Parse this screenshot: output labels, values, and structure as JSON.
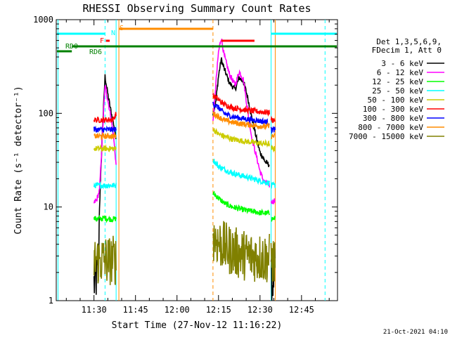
{
  "chart_data": {
    "type": "line",
    "title": "RHESSI Observing Summary Count Rates",
    "xlabel": "Start Time (27-Nov-12 11:16:22)",
    "ylabel": "Count Rate (s⁻¹ detector⁻¹)",
    "y_scale": "log",
    "ylim": [
      1,
      1000
    ],
    "xlim": [
      "11:16:22",
      "12:58:00"
    ],
    "x_ticks": [
      "11:30",
      "11:45",
      "12:00",
      "12:15",
      "12:30",
      "12:45"
    ],
    "y_ticks": [
      "1",
      "10",
      "100",
      "1000"
    ],
    "footer": "21-Oct-2021 04:10",
    "legend": {
      "placement": "right",
      "header": [
        "Det 1,3,5,6,9,",
        "FDecim 1, Att 0"
      ]
    },
    "flag_labels": {
      "flare": "F",
      "nflag": "N",
      "saa": "S",
      "rd0": "RD0",
      "rd6": "RD6"
    },
    "series": [
      {
        "name": "3 - 6 keV",
        "color": "#000000",
        "segments": [
          {
            "t": [
              "11:30:00",
              "11:31:30",
              "11:32:00",
              "11:33:00",
              "11:34:00",
              "11:35:00",
              "11:36:00",
              "11:37:00",
              "11:38:00"
            ],
            "y": [
              1.5,
              2,
              10,
              60,
              250,
              160,
              110,
              80,
              55
            ]
          },
          {
            "t": [
              "12:13:00",
              "12:14:00",
              "12:15:00",
              "12:16:00",
              "12:17:00",
              "12:19:00",
              "12:21:00",
              "12:22:30",
              "12:24:00",
              "12:25:30",
              "12:27:00",
              "12:29:00",
              "12:30:00",
              "12:31:00",
              "12:32:00",
              "12:33:30"
            ],
            "y": [
              100,
              130,
              250,
              380,
              300,
              210,
              180,
              240,
              220,
              150,
              90,
              50,
              38,
              34,
              30,
              28
            ]
          },
          {
            "t": [
              "12:34:00",
              "12:35:30"
            ],
            "y": [
              1.5,
              2
            ]
          }
        ]
      },
      {
        "name": "6 - 12 keV",
        "color": "#ff00ff",
        "segments": [
          {
            "t": [
              "11:30:00",
              "11:31:00",
              "11:32:00",
              "11:33:00",
              "11:34:00",
              "11:35:00",
              "11:36:00",
              "11:37:00",
              "11:38:00"
            ],
            "y": [
              11,
              12,
              15,
              55,
              200,
              140,
              95,
              60,
              28
            ]
          },
          {
            "t": [
              "12:13:00",
              "12:14:00",
              "12:15:00",
              "12:16:00",
              "12:17:00",
              "12:19:00",
              "12:21:00",
              "12:22:30",
              "12:24:00",
              "12:25:30",
              "12:27:00",
              "12:29:00",
              "12:30:00",
              "12:31:00",
              "12:32:00",
              "12:33:30"
            ],
            "y": [
              80,
              200,
              450,
              650,
              420,
              260,
              200,
              280,
              230,
              110,
              55,
              32,
              24,
              20,
              18,
              17
            ]
          },
          {
            "t": [
              "12:34:00",
              "12:35:30"
            ],
            "y": [
              11,
              12
            ]
          }
        ]
      },
      {
        "name": "12 - 25 keV",
        "color": "#00ff00",
        "segments": [
          {
            "t": [
              "11:30:00",
              "11:32:00",
              "11:34:00",
              "11:36:00",
              "11:38:00"
            ],
            "y": [
              7.5,
              7.5,
              7.6,
              7.4,
              7.5
            ]
          },
          {
            "t": [
              "12:13:00",
              "12:15:00",
              "12:17:00",
              "12:20:00",
              "12:25:00",
              "12:30:00",
              "12:33:30"
            ],
            "y": [
              14,
              12.5,
              11,
              10,
              9.2,
              8.7,
              8.5
            ]
          },
          {
            "t": [
              "12:34:00",
              "12:35:30"
            ],
            "y": [
              7.5,
              7.5
            ]
          }
        ]
      },
      {
        "name": "25 - 50 keV",
        "color": "#00ffff",
        "segments": [
          {
            "t": [
              "11:30:00",
              "11:34:00",
              "11:38:00"
            ],
            "y": [
              17,
              17,
              17
            ]
          },
          {
            "t": [
              "12:13:00",
              "12:15:00",
              "12:20:00",
              "12:25:00",
              "12:30:00",
              "12:33:30"
            ],
            "y": [
              32,
              27,
              23,
              21,
              19,
              18
            ]
          },
          {
            "t": [
              "12:34:00",
              "12:35:30"
            ],
            "y": [
              17,
              17
            ]
          }
        ]
      },
      {
        "name": "50 - 100 keV",
        "color": "#cccc00",
        "segments": [
          {
            "t": [
              "11:30:00",
              "11:34:00",
              "11:38:00"
            ],
            "y": [
              42,
              42,
              42
            ]
          },
          {
            "t": [
              "12:13:00",
              "12:15:00",
              "12:20:00",
              "12:25:00",
              "12:30:00",
              "12:33:30"
            ],
            "y": [
              68,
              60,
              53,
              50,
              48,
              47
            ]
          },
          {
            "t": [
              "12:34:00",
              "12:35:30"
            ],
            "y": [
              42,
              42
            ]
          }
        ]
      },
      {
        "name": "100 - 300 keV",
        "color": "#ff0000",
        "segments": [
          {
            "t": [
              "11:30:00",
              "11:34:00",
              "11:37:00",
              "11:38:00"
            ],
            "y": [
              85,
              85,
              86,
              100
            ]
          },
          {
            "t": [
              "12:13:00",
              "12:15:00",
              "12:17:00",
              "12:20:00",
              "12:25:00",
              "12:30:00",
              "12:33:30"
            ],
            "y": [
              155,
              140,
              125,
              115,
              108,
              104,
              102
            ]
          },
          {
            "t": [
              "12:34:00",
              "12:35:30"
            ],
            "y": [
              85,
              85
            ]
          }
        ]
      },
      {
        "name": "300 - 800 keV",
        "color": "#0000ff",
        "segments": [
          {
            "t": [
              "11:30:00",
              "11:34:00",
              "11:38:00"
            ],
            "y": [
              67,
              67,
              67
            ]
          },
          {
            "t": [
              "12:13:00",
              "12:15:00",
              "12:17:00",
              "12:20:00",
              "12:25:00",
              "12:30:00",
              "12:33:30"
            ],
            "y": [
              128,
              115,
              100,
              92,
              87,
              83,
              80
            ]
          },
          {
            "t": [
              "12:34:00",
              "12:35:30"
            ],
            "y": [
              67,
              67
            ]
          }
        ]
      },
      {
        "name": "800 - 7000 keV",
        "color": "#ff8c00",
        "segments": [
          {
            "t": [
              "11:30:00",
              "11:34:00",
              "11:38:00"
            ],
            "y": [
              57,
              57,
              57
            ]
          },
          {
            "t": [
              "12:13:00",
              "12:15:00",
              "12:17:00",
              "12:20:00",
              "12:25:00",
              "12:30:00",
              "12:33:30"
            ],
            "y": [
              100,
              92,
              85,
              80,
              76,
              73,
              72
            ]
          },
          {
            "t": [
              "12:34:00",
              "12:35:30"
            ],
            "y": [
              57,
              57
            ]
          }
        ]
      },
      {
        "name": "7000 - 15000 keV",
        "color": "#808000",
        "segments": [
          {
            "t": [
              "11:30:00",
              "11:34:00",
              "11:38:00"
            ],
            "y": [
              2.7,
              2.7,
              2.7
            ]
          },
          {
            "t": [
              "12:13:00",
              "12:15:00",
              "12:18:00",
              "12:22:00",
              "12:26:00",
              "12:30:00",
              "12:33:30"
            ],
            "y": [
              5,
              4.2,
              3.6,
              3.2,
              3.0,
              2.9,
              2.8
            ]
          },
          {
            "t": [
              "12:34:00",
              "12:35:30"
            ],
            "y": [
              2.7,
              2.7
            ]
          }
        ]
      }
    ],
    "vlines": [
      {
        "t": "11:17:00",
        "color": "#00ffff",
        "style": "solid"
      },
      {
        "t": "11:34:00",
        "color": "#00ffff",
        "style": "dashed"
      },
      {
        "t": "11:38:00",
        "color": "#00ffff",
        "style": "solid"
      },
      {
        "t": "11:39:00",
        "color": "#ff8c00",
        "style": "solid"
      },
      {
        "t": "12:13:00",
        "color": "#ff8c00",
        "style": "dashed"
      },
      {
        "t": "12:34:00",
        "color": "#00ffff",
        "style": "solid"
      },
      {
        "t": "12:35:30",
        "color": "#ff8c00",
        "style": "solid"
      },
      {
        "t": "12:53:30",
        "color": "#00ffff",
        "style": "dashed"
      }
    ],
    "hbars": [
      {
        "name": "night",
        "color": "#00ffff",
        "t0": "11:16:22",
        "t1": "11:34:00",
        "level": 1
      },
      {
        "name": "night",
        "color": "#00ffff",
        "t0": "12:34:00",
        "t1": "12:58:00",
        "level": 1
      },
      {
        "name": "saa",
        "color": "#ff8c00",
        "t0": "11:39:00",
        "t1": "12:13:00",
        "level": 2
      },
      {
        "name": "flare",
        "color": "#ff0000",
        "t0": "11:34:20",
        "t1": "11:35:40",
        "level": 3
      },
      {
        "name": "flare",
        "color": "#ff0000",
        "t0": "12:16:00",
        "t1": "12:28:00",
        "level": 3
      },
      {
        "name": "rd0",
        "color": "#008000",
        "t0": "11:22:00",
        "t1": "12:58:00",
        "level": 4
      },
      {
        "name": "rd6",
        "color": "#008000",
        "t0": "11:16:22",
        "t1": "11:22:00",
        "level": 5
      }
    ]
  }
}
